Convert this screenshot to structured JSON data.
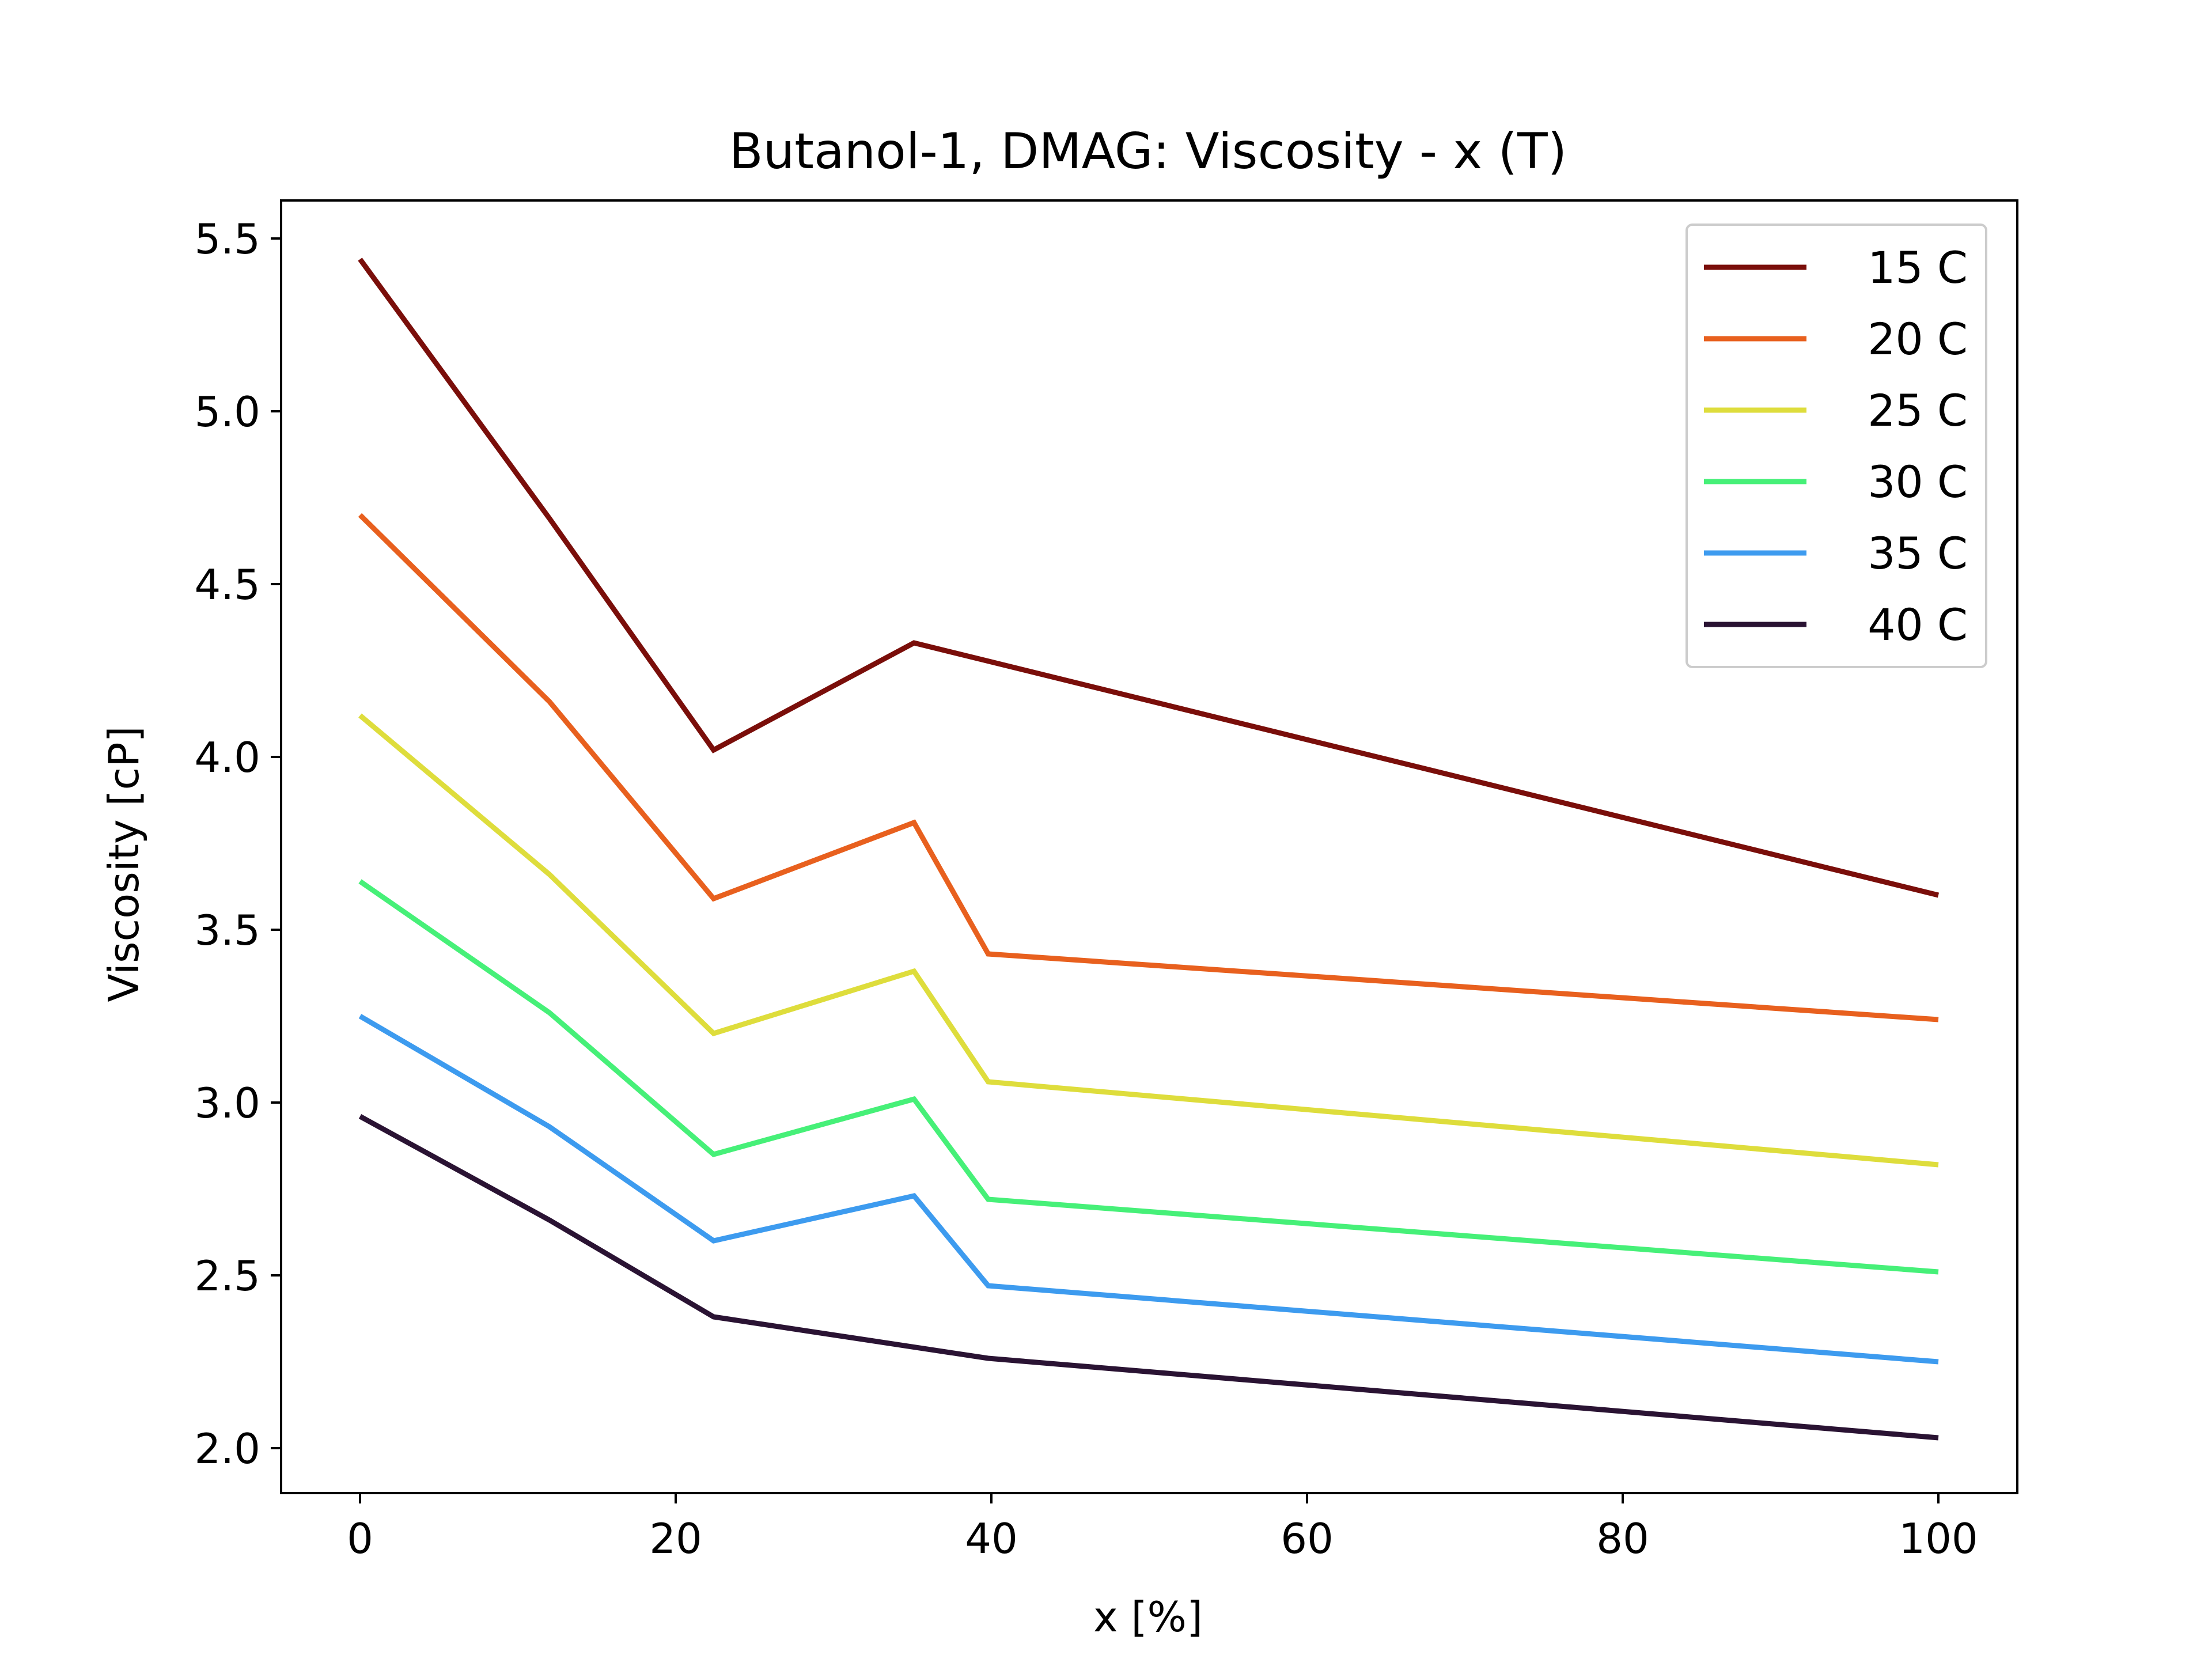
{
  "chart_data": {
    "type": "line",
    "title": "Butanol-1, DMAG: Viscosity - x (T)",
    "xlabel": "x [%]",
    "ylabel": "Viscosity [cP]",
    "xlim": [
      -5,
      105
    ],
    "ylim": [
      1.87,
      5.61
    ],
    "xticks": [
      0,
      20,
      40,
      60,
      80,
      100
    ],
    "xtick_labels": [
      "0",
      "20",
      "40",
      "60",
      "80",
      "100"
    ],
    "yticks": [
      2.0,
      2.5,
      3.0,
      3.5,
      4.0,
      4.5,
      5.0,
      5.5
    ],
    "ytick_labels": [
      "2.0",
      "2.5",
      "3.0",
      "3.5",
      "4.0",
      "4.5",
      "5.0",
      "5.5"
    ],
    "grid": false,
    "legend_position": "top-right",
    "x": [
      0,
      12,
      22.4,
      35.1,
      39.8,
      100
    ],
    "series": [
      {
        "name": "15 C",
        "color": "#7a0e0a",
        "x": [
          0,
          12,
          22.4,
          35.1,
          100
        ],
        "values": [
          5.44,
          4.69,
          4.02,
          4.33,
          3.6
        ]
      },
      {
        "name": "20 C",
        "color": "#e8601e",
        "x": [
          0,
          12,
          22.4,
          35.1,
          39.8,
          100
        ],
        "values": [
          4.7,
          4.16,
          3.59,
          3.81,
          3.43,
          3.24
        ]
      },
      {
        "name": "25 C",
        "color": "#dedd3c",
        "x": [
          0,
          12,
          22.4,
          35.1,
          39.8,
          100
        ],
        "values": [
          4.12,
          3.66,
          3.2,
          3.38,
          3.06,
          2.82
        ]
      },
      {
        "name": "30 C",
        "color": "#46f078",
        "x": [
          0,
          12,
          22.4,
          35.1,
          39.8,
          100
        ],
        "values": [
          3.64,
          3.26,
          2.85,
          3.01,
          2.72,
          2.51
        ]
      },
      {
        "name": "35 C",
        "color": "#3d9bef",
        "x": [
          0,
          12,
          22.4,
          35.1,
          39.8,
          100
        ],
        "values": [
          3.25,
          2.93,
          2.6,
          2.73,
          2.47,
          2.25
        ]
      },
      {
        "name": "40 C",
        "color": "#2a1333",
        "x": [
          0,
          12,
          22.4,
          39.8,
          100
        ],
        "values": [
          2.96,
          2.66,
          2.38,
          2.26,
          2.03
        ]
      }
    ]
  }
}
